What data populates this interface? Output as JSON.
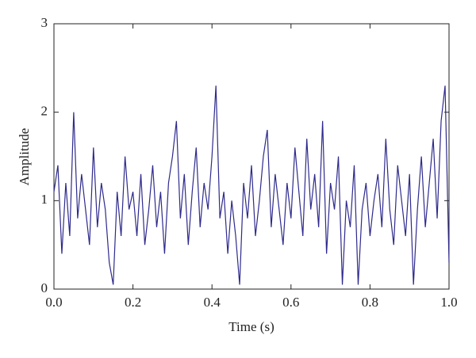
{
  "chart_data": {
    "type": "line",
    "x_label": "Time (s)",
    "y_label": "Amplitude",
    "color": "#2e2a8c",
    "x": [
      0,
      0.01,
      0.02,
      0.03,
      0.04,
      0.05,
      0.06,
      0.07,
      0.08,
      0.09,
      0.1,
      0.11,
      0.12,
      0.13,
      0.14,
      0.15,
      0.16,
      0.17,
      0.18,
      0.19,
      0.2,
      0.21,
      0.22,
      0.23,
      0.24,
      0.25,
      0.26,
      0.27,
      0.28,
      0.29,
      0.3,
      0.31,
      0.32,
      0.33,
      0.34,
      0.35,
      0.36,
      0.37,
      0.38,
      0.39,
      0.4,
      0.41,
      0.42,
      0.43,
      0.44,
      0.45,
      0.46,
      0.47,
      0.48,
      0.49,
      0.5,
      0.51,
      0.52,
      0.53,
      0.54,
      0.55,
      0.56,
      0.57,
      0.58,
      0.59,
      0.6,
      0.61,
      0.62,
      0.63,
      0.64,
      0.65,
      0.66,
      0.67,
      0.68,
      0.69,
      0.7,
      0.71,
      0.72,
      0.73,
      0.74,
      0.75,
      0.76,
      0.77,
      0.78,
      0.79,
      0.8,
      0.81,
      0.82,
      0.83,
      0.84,
      0.85,
      0.86,
      0.87,
      0.88,
      0.89,
      0.9,
      0.91,
      0.92,
      0.93,
      0.94,
      0.95,
      0.96,
      0.97,
      0.98,
      0.99,
      1
    ],
    "values": [
      1.1,
      1.4,
      0.4,
      1.2,
      0.6,
      2.0,
      0.8,
      1.3,
      0.9,
      0.5,
      1.6,
      0.7,
      1.2,
      0.9,
      0.3,
      0.05,
      1.1,
      0.6,
      1.5,
      0.9,
      1.1,
      0.6,
      1.3,
      0.5,
      0.9,
      1.4,
      0.7,
      1.1,
      0.4,
      1.2,
      1.5,
      1.9,
      0.8,
      1.3,
      0.5,
      1.1,
      1.6,
      0.7,
      1.2,
      0.9,
      1.5,
      2.3,
      0.8,
      1.1,
      0.4,
      1.0,
      0.6,
      0.05,
      1.2,
      0.8,
      1.4,
      0.6,
      1.0,
      1.5,
      1.8,
      0.7,
      1.3,
      0.9,
      0.5,
      1.2,
      0.8,
      1.6,
      1.1,
      0.6,
      1.7,
      0.9,
      1.3,
      0.7,
      1.9,
      0.4,
      1.2,
      0.9,
      1.5,
      0.05,
      1.0,
      0.7,
      1.4,
      0.05,
      0.9,
      1.2,
      0.6,
      1.0,
      1.3,
      0.7,
      1.7,
      0.9,
      0.5,
      1.4,
      1.0,
      0.6,
      1.3,
      0.05,
      0.9,
      1.5,
      0.7,
      1.2,
      1.7,
      0.8,
      1.9,
      2.3,
      0.3
    ],
    "xlim": [
      0,
      1
    ],
    "xticks": [
      {
        "value": 0,
        "label": "0.0"
      },
      0.2,
      0.4,
      0.6,
      0.8,
      {
        "value": 1,
        "label": "1.0"
      }
    ],
    "ylim": [
      0,
      3
    ],
    "yticks": [
      0,
      1,
      2,
      3
    ]
  }
}
